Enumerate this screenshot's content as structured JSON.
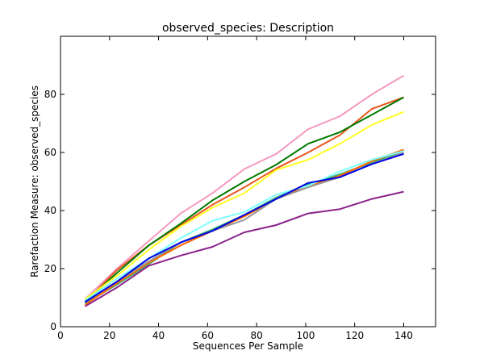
{
  "chart_data": {
    "type": "line",
    "title": "observed_species: Description",
    "xlabel": "Sequences Per Sample",
    "ylabel": "Rarefaction Measure: observed_species",
    "xlim": [
      0,
      153
    ],
    "ylim": [
      0,
      100
    ],
    "xticks": [
      0,
      20,
      40,
      60,
      80,
      100,
      120,
      140
    ],
    "yticks": [
      0,
      20,
      40,
      60,
      80
    ],
    "grid": false,
    "x": [
      10,
      23,
      36,
      49,
      62,
      75,
      88,
      101,
      114,
      127,
      140
    ],
    "series": [
      {
        "color": "#f49ac1",
        "values": [
          9.5,
          20.0,
          29.5,
          39.0,
          46.0,
          54.3,
          59.5,
          68.0,
          72.5,
          80.0,
          86.5
        ]
      },
      {
        "color": "#e8561b",
        "values": [
          8.5,
          19.5,
          28.0,
          35.0,
          42.0,
          48.0,
          54.5,
          60.0,
          66.0,
          75.0,
          79.0
        ]
      },
      {
        "color": "#007a00",
        "values": [
          8.5,
          18.5,
          28.0,
          35.5,
          43.5,
          50.0,
          55.8,
          63.0,
          67.0,
          73.0,
          79.0
        ]
      },
      {
        "color": "#ffff22",
        "values": [
          9.5,
          17.5,
          26.5,
          34.5,
          41.0,
          46.0,
          54.0,
          57.5,
          63.0,
          69.5,
          74.0
        ]
      },
      {
        "color": "#3cb371",
        "values": [
          8.0,
          14.5,
          21.5,
          29.0,
          33.5,
          38.5,
          44.5,
          49.0,
          52.5,
          56.5,
          60.5
        ]
      },
      {
        "color": "#ff6600",
        "values": [
          7.5,
          15.0,
          22.0,
          28.0,
          33.0,
          38.0,
          44.0,
          48.5,
          52.0,
          57.0,
          61.0
        ]
      },
      {
        "color": "#999999",
        "values": [
          8.5,
          15.5,
          22.5,
          29.0,
          33.0,
          36.8,
          44.0,
          48.0,
          51.5,
          56.0,
          60.0
        ]
      },
      {
        "color": "#7fffff",
        "values": [
          9.0,
          16.5,
          23.5,
          30.5,
          36.5,
          39.5,
          45.5,
          48.5,
          53.5,
          57.5,
          60.5
        ]
      },
      {
        "color": "#0000e6",
        "values": [
          8.5,
          15.5,
          23.5,
          29.0,
          33.0,
          38.5,
          44.0,
          49.5,
          51.5,
          56.0,
          59.5
        ]
      },
      {
        "color": "#8b228b",
        "values": [
          7.0,
          13.5,
          21.0,
          24.5,
          27.5,
          32.5,
          35.0,
          39.0,
          40.5,
          44.0,
          46.5
        ]
      }
    ]
  }
}
